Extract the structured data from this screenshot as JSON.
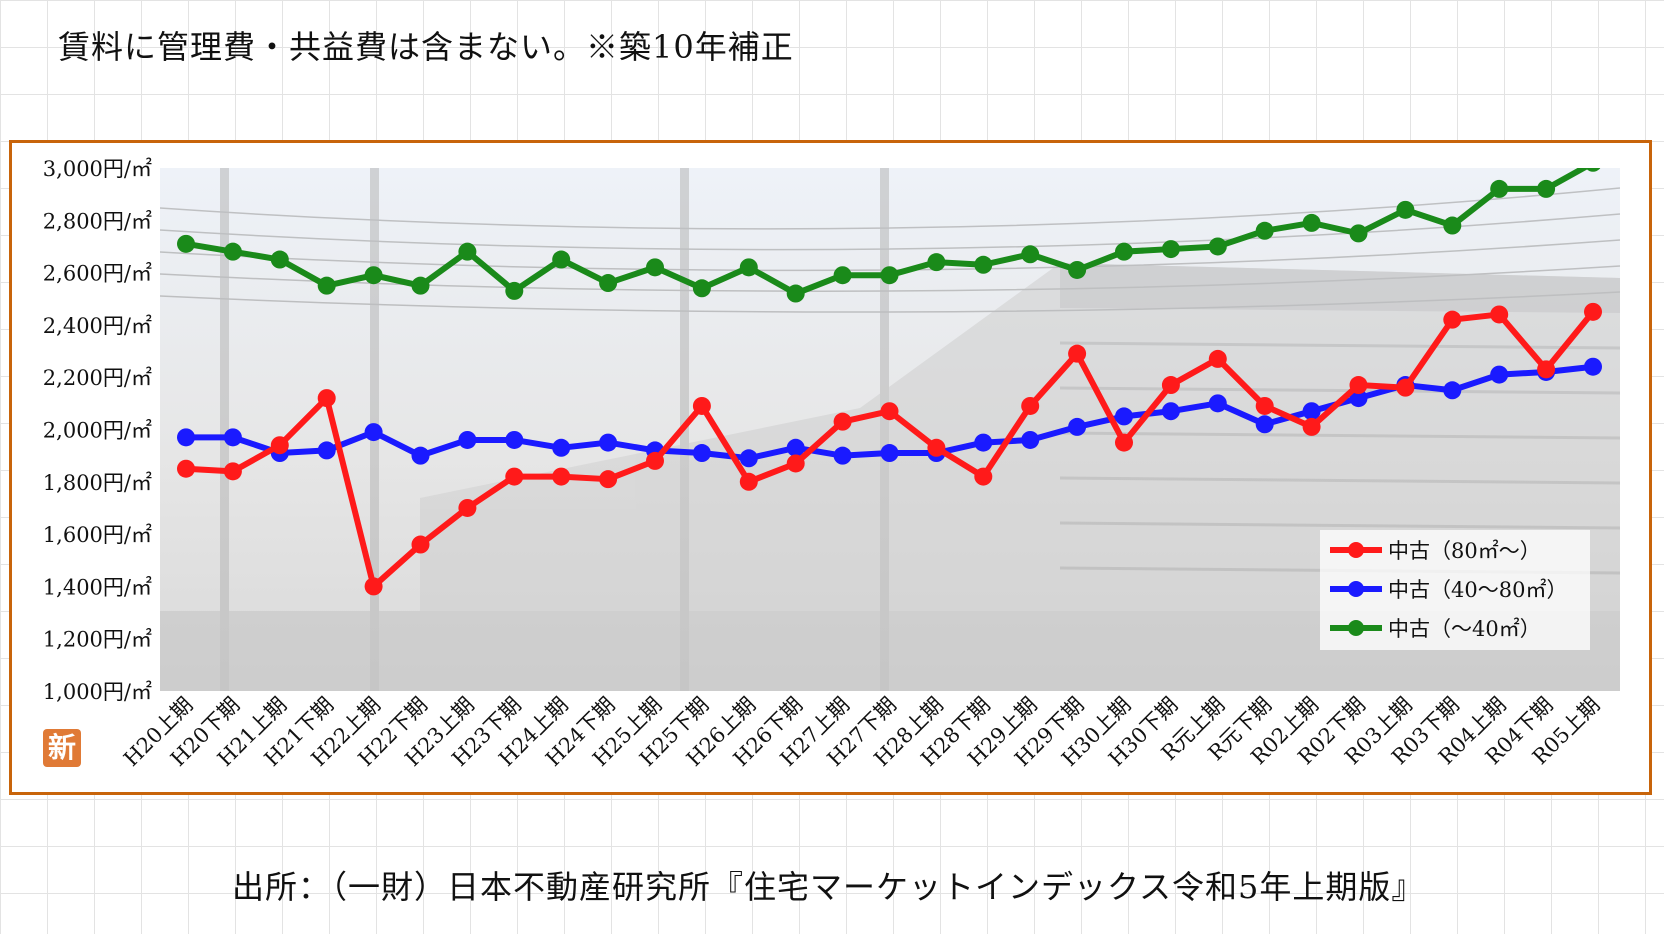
{
  "note": "賃料に管理費・共益費は含まない。※築10年補正",
  "source": "出所：（一財）日本不動産研究所『住宅マーケットインデックス令和5年上期版』",
  "badge": "新",
  "colors": {
    "red": "#ff1a1a",
    "blue": "#1a1aff",
    "green": "#1a8a1a",
    "frame": "#c8640a",
    "badge": "#e07a36"
  },
  "chart_data": {
    "type": "line",
    "title": "",
    "xlabel": "",
    "ylabel": "",
    "ylim": [
      1000,
      3000
    ],
    "yticks": [
      "1,000円/㎡",
      "1,200円/㎡",
      "1,400円/㎡",
      "1,600円/㎡",
      "1,800円/㎡",
      "2,000円/㎡",
      "2,200円/㎡",
      "2,400円/㎡",
      "2,600円/㎡",
      "2,800円/㎡",
      "3,000円/㎡"
    ],
    "ytick_values": [
      1000,
      1200,
      1400,
      1600,
      1800,
      2000,
      2200,
      2400,
      2600,
      2800,
      3000
    ],
    "legend_position": "right",
    "categories": [
      "H20上期",
      "H20下期",
      "H21上期",
      "H21下期",
      "H22上期",
      "H22下期",
      "H23上期",
      "H23下期",
      "H24上期",
      "H24下期",
      "H25上期",
      "H25下期",
      "H26上期",
      "H26下期",
      "H27上期",
      "H27下期",
      "H28上期",
      "H28下期",
      "H29上期",
      "H29下期",
      "H30上期",
      "H30下期",
      "R元上期",
      "R元下期",
      "R02上期",
      "R02下期",
      "R03上期",
      "R03下期",
      "R04上期",
      "R04下期",
      "R05上期"
    ],
    "series": [
      {
        "name": "中古（80㎡～）",
        "color": "#ff1a1a",
        "values": [
          1850,
          1840,
          1940,
          2120,
          1400,
          1560,
          1700,
          1820,
          1820,
          1810,
          1880,
          2090,
          1800,
          1870,
          2030,
          2070,
          1930,
          1820,
          2090,
          2290,
          1950,
          2170,
          2270,
          2090,
          2010,
          2170,
          2160,
          2420,
          2440,
          2230,
          2450
        ]
      },
      {
        "name": "中古（40～80㎡）",
        "color": "#1a1aff",
        "values": [
          1970,
          1970,
          1910,
          1920,
          1990,
          1900,
          1960,
          1960,
          1930,
          1950,
          1920,
          1910,
          1890,
          1930,
          1900,
          1910,
          1910,
          1950,
          1960,
          2010,
          2050,
          2070,
          2100,
          2020,
          2070,
          2120,
          2170,
          2150,
          2210,
          2220,
          2240
        ]
      },
      {
        "name": "中古（～40㎡）",
        "color": "#1a8a1a",
        "values": [
          2710,
          2680,
          2650,
          2550,
          2590,
          2550,
          2680,
          2530,
          2650,
          2560,
          2620,
          2540,
          2620,
          2520,
          2590,
          2590,
          2640,
          2630,
          2670,
          2610,
          2680,
          2690,
          2700,
          2760,
          2790,
          2750,
          2840,
          2780,
          2920,
          2920,
          3020
        ]
      }
    ]
  }
}
